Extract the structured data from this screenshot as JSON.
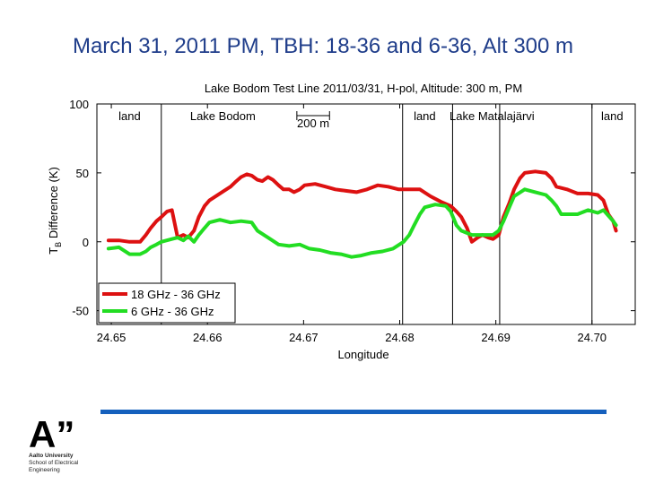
{
  "slide": {
    "title": "March 31, 2011 PM, TBH: 18-36 and 6-36, Alt 300 m"
  },
  "colors": {
    "title": "#1f3d8a",
    "series_red": "#dd1111",
    "series_green": "#22dd22",
    "footer_bar": "#1560bd"
  },
  "logo": {
    "mark": "A”",
    "lines": [
      "Aalto University",
      "School of Electrical",
      "Engineering"
    ]
  },
  "chart_data": {
    "type": "line",
    "title": "Lake Bodom Test Line 2011/03/31, H-pol, Altitude: 300 m, PM",
    "xlabel": "Longitude",
    "ylabel": "T_B Difference (K)",
    "xlim": [
      24.6485,
      24.7045
    ],
    "ylim": [
      -60,
      100
    ],
    "xticks": [
      {
        "value": 24.65,
        "label": "24.65"
      },
      {
        "value": 24.66,
        "label": "24.66"
      },
      {
        "value": 24.67,
        "label": "24.67"
      },
      {
        "value": 24.68,
        "label": "24.68"
      },
      {
        "value": 24.69,
        "label": "24.69"
      },
      {
        "value": 24.7,
        "label": "24.70"
      }
    ],
    "yticks": [
      {
        "value": 100,
        "label": "100"
      },
      {
        "value": 50,
        "label": "50"
      },
      {
        "value": 0,
        "label": "0"
      },
      {
        "value": -50,
        "label": "-50"
      }
    ],
    "grid": false,
    "legend_position": "bottom-left",
    "vertical_lines": [
      24.6552,
      24.6803,
      24.6855,
      24.6904,
      24.7
    ],
    "region_labels": [
      {
        "text": "land",
        "x": 24.6519
      },
      {
        "text": "Lake Bodom",
        "x": 24.6616
      },
      {
        "text": "land",
        "x": 24.6826
      },
      {
        "text": "Lake Matalajärvi",
        "x": 24.6896
      },
      {
        "text": "land",
        "x": 24.7021
      }
    ],
    "scale_bar": {
      "label": "200 m",
      "x_start": 24.6693,
      "x_end": 24.6727
    },
    "series": [
      {
        "name": "18 GHz - 36 GHz",
        "color": "#dd1111",
        "points": [
          [
            24.6497,
            1
          ],
          [
            24.6508,
            1
          ],
          [
            24.6519,
            0
          ],
          [
            24.653,
            0
          ],
          [
            24.6536,
            5
          ],
          [
            24.6541,
            10
          ],
          [
            24.6547,
            15
          ],
          [
            24.6552,
            18
          ],
          [
            24.6558,
            22
          ],
          [
            24.6563,
            23
          ],
          [
            24.6569,
            3
          ],
          [
            24.6575,
            5
          ],
          [
            24.658,
            3
          ],
          [
            24.6586,
            8
          ],
          [
            24.6591,
            18
          ],
          [
            24.6597,
            26
          ],
          [
            24.6602,
            30
          ],
          [
            24.6613,
            35
          ],
          [
            24.6624,
            40
          ],
          [
            24.663,
            44
          ],
          [
            24.6635,
            47
          ],
          [
            24.6641,
            49
          ],
          [
            24.6646,
            48
          ],
          [
            24.6652,
            45
          ],
          [
            24.6657,
            44
          ],
          [
            24.6663,
            47
          ],
          [
            24.6668,
            45
          ],
          [
            24.6674,
            41
          ],
          [
            24.6679,
            38
          ],
          [
            24.6685,
            38
          ],
          [
            24.669,
            36
          ],
          [
            24.6696,
            38
          ],
          [
            24.6701,
            41
          ],
          [
            24.6712,
            42
          ],
          [
            24.6723,
            40
          ],
          [
            24.6733,
            38
          ],
          [
            24.6744,
            37
          ],
          [
            24.6755,
            36
          ],
          [
            24.6766,
            38
          ],
          [
            24.6777,
            41
          ],
          [
            24.6788,
            40
          ],
          [
            24.6799,
            38
          ],
          [
            24.681,
            38
          ],
          [
            24.6821,
            38
          ],
          [
            24.6832,
            33
          ],
          [
            24.6843,
            29
          ],
          [
            24.6853,
            26
          ],
          [
            24.6859,
            22
          ],
          [
            24.6864,
            18
          ],
          [
            24.687,
            10
          ],
          [
            24.6875,
            0
          ],
          [
            24.6881,
            3
          ],
          [
            24.6886,
            5
          ],
          [
            24.6892,
            3
          ],
          [
            24.6897,
            2
          ],
          [
            24.6903,
            5
          ],
          [
            24.6908,
            18
          ],
          [
            24.6914,
            28
          ],
          [
            24.6919,
            38
          ],
          [
            24.6925,
            46
          ],
          [
            24.693,
            50
          ],
          [
            24.6941,
            51
          ],
          [
            24.6952,
            50
          ],
          [
            24.6958,
            46
          ],
          [
            24.6963,
            40
          ],
          [
            24.6974,
            38
          ],
          [
            24.6985,
            35
          ],
          [
            24.6996,
            35
          ],
          [
            24.7006,
            34
          ],
          [
            24.7012,
            30
          ],
          [
            24.7017,
            20
          ],
          [
            24.7022,
            15
          ],
          [
            24.7025,
            8
          ]
        ]
      },
      {
        "name": "6 GHz - 36 GHz",
        "color": "#22dd22",
        "points": [
          [
            24.6497,
            -5
          ],
          [
            24.6508,
            -4
          ],
          [
            24.6519,
            -9
          ],
          [
            24.653,
            -9
          ],
          [
            24.6536,
            -7
          ],
          [
            24.6541,
            -4
          ],
          [
            24.6547,
            -2
          ],
          [
            24.6552,
            0
          ],
          [
            24.6563,
            2
          ],
          [
            24.6569,
            3
          ],
          [
            24.6575,
            1
          ],
          [
            24.658,
            4
          ],
          [
            24.6586,
            0
          ],
          [
            24.6591,
            5
          ],
          [
            24.6597,
            10
          ],
          [
            24.6602,
            14
          ],
          [
            24.6613,
            16
          ],
          [
            24.6624,
            14
          ],
          [
            24.6635,
            15
          ],
          [
            24.6646,
            14
          ],
          [
            24.6652,
            8
          ],
          [
            24.6663,
            3
          ],
          [
            24.6674,
            -2
          ],
          [
            24.6685,
            -3
          ],
          [
            24.6696,
            -2
          ],
          [
            24.6706,
            -5
          ],
          [
            24.6717,
            -6
          ],
          [
            24.6728,
            -8
          ],
          [
            24.6739,
            -9
          ],
          [
            24.675,
            -11
          ],
          [
            24.676,
            -10
          ],
          [
            24.6771,
            -8
          ],
          [
            24.6782,
            -7
          ],
          [
            24.6793,
            -5
          ],
          [
            24.6804,
            0
          ],
          [
            24.681,
            5
          ],
          [
            24.6815,
            12
          ],
          [
            24.6821,
            20
          ],
          [
            24.6826,
            25
          ],
          [
            24.6837,
            27
          ],
          [
            24.6848,
            26
          ],
          [
            24.6853,
            22
          ],
          [
            24.6859,
            12
          ],
          [
            24.6864,
            8
          ],
          [
            24.6875,
            5
          ],
          [
            24.6886,
            5
          ],
          [
            24.6897,
            5
          ],
          [
            24.6903,
            8
          ],
          [
            24.6908,
            15
          ],
          [
            24.6914,
            25
          ],
          [
            24.6919,
            33
          ],
          [
            24.693,
            38
          ],
          [
            24.6941,
            36
          ],
          [
            24.6952,
            34
          ],
          [
            24.6958,
            30
          ],
          [
            24.6963,
            26
          ],
          [
            24.6968,
            20
          ],
          [
            24.6974,
            20
          ],
          [
            24.6985,
            20
          ],
          [
            24.6996,
            23
          ],
          [
            24.7006,
            21
          ],
          [
            24.7012,
            23
          ],
          [
            24.7017,
            19
          ],
          [
            24.7022,
            15
          ],
          [
            24.7025,
            12
          ]
        ]
      }
    ]
  }
}
